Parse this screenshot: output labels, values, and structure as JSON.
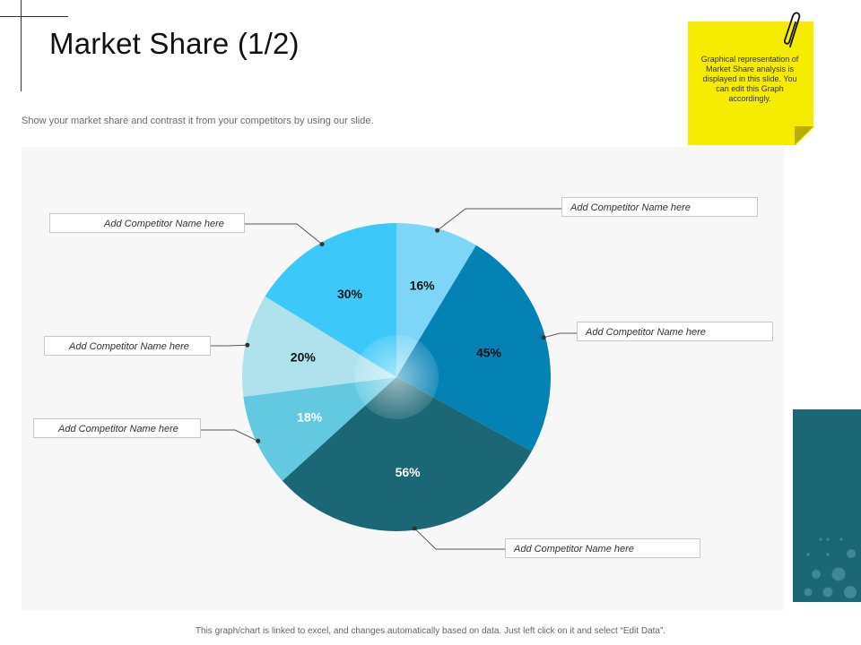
{
  "title": "Market Share (1/2)",
  "subtitle": "Show your market share and contrast it from your competitors by using our slide.",
  "note": {
    "text": "Graphical representation of Market Share analysis is displayed in this slide. You can edit this Graph accordingly.",
    "color": "#f5ec00"
  },
  "footer": "This graph/chart is linked to excel, and changes automatically based on data. Just left click on it and select “Edit Data”.",
  "chart_data": {
    "type": "pie",
    "title": "",
    "slices": [
      {
        "value": 16,
        "label": "16%",
        "color": "#7dd6f7",
        "label_color": "#111111",
        "legend": "Add Competitor Name here"
      },
      {
        "value": 45,
        "label": "45%",
        "color": "#0582b4",
        "label_color": "#111111",
        "legend": "Add Competitor Name here"
      },
      {
        "value": 56,
        "label": "56%",
        "color": "#1c6776",
        "label_color": "#ffffff",
        "legend": "Add Competitor Name here"
      },
      {
        "value": 18,
        "label": "18%",
        "color": "#62c9e1",
        "label_color": "#ffffff",
        "legend": "Add Competitor Name here"
      },
      {
        "value": 20,
        "label": "20%",
        "color": "#b0e2ee",
        "label_color": "#111111",
        "legend": "Add Competitor Name here"
      },
      {
        "value": 30,
        "label": "30%",
        "color": "#3cc8f8",
        "label_color": "#111111",
        "legend": "Add Competitor Name here"
      }
    ]
  }
}
